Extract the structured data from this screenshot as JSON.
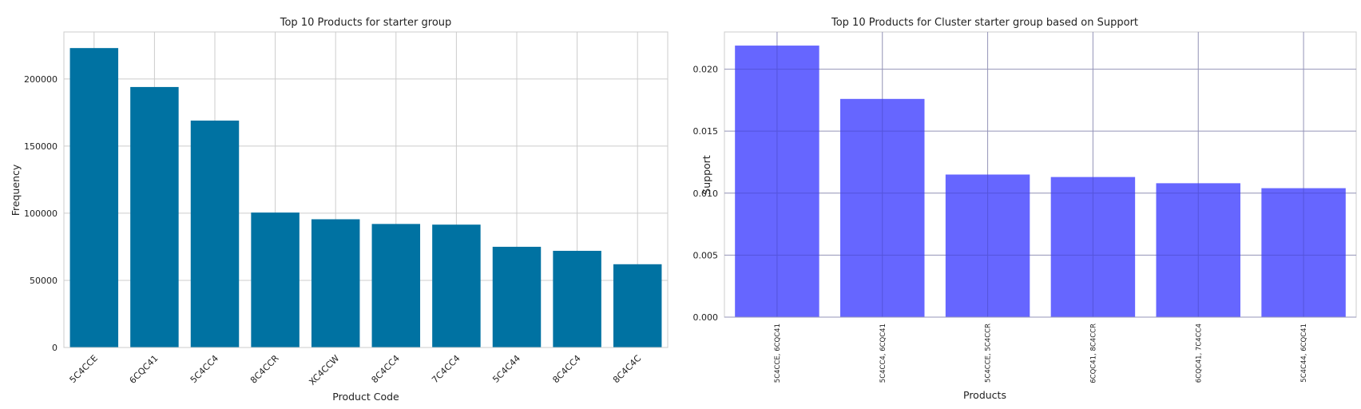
{
  "chart_data": [
    {
      "type": "bar",
      "title": "Top 10 Products for starter group",
      "xlabel": "Product Code",
      "ylabel": "Frequency",
      "categories": [
        "5C4CCE",
        "6CQC41",
        "5C4CC4",
        "8C4CCR",
        "XC4CCW",
        "8C4CC4",
        "7C4CC4",
        "5C4C44",
        "8C4CC4",
        "8C4C4C"
      ],
      "values": [
        223000,
        194000,
        169000,
        100500,
        95500,
        92000,
        91500,
        75000,
        72000,
        62000
      ],
      "ylim": [
        0,
        235000
      ],
      "yticks": [
        0,
        50000,
        100000,
        150000,
        200000
      ],
      "grid": true,
      "bar_color": "#0072a2"
    },
    {
      "type": "bar",
      "title": "Top 10 Products for Cluster starter group based on Support",
      "xlabel": "Products",
      "ylabel": "Support",
      "categories": [
        "5C4CCE, 6CQC41",
        "5C4CC4, 6CQC41",
        "5C4CCE, 5C4CCR",
        "6CQC41, 8C4CCR",
        "6CQC41, 7C4CC4",
        "5C4C44, 6CQC41"
      ],
      "values": [
        0.0219,
        0.0176,
        0.0115,
        0.0113,
        0.0108,
        0.0104
      ],
      "ylim": [
        0,
        0.023
      ],
      "yticks": [
        "0.000",
        "0.005",
        "0.010",
        "0.015",
        "0.020"
      ],
      "grid": true,
      "bar_color": "#6666ff"
    }
  ]
}
